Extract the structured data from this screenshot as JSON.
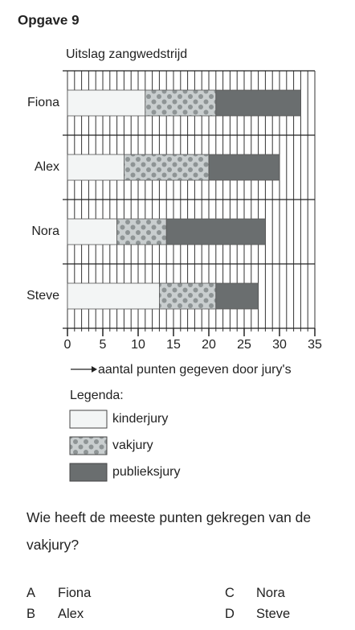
{
  "heading": "Opgave 9",
  "chart_data": {
    "type": "stacked-barh",
    "title": "Uitslag zangwedstrijd",
    "categories": [
      "Fiona",
      "Alex",
      "Nora",
      "Steve"
    ],
    "series": [
      {
        "name": "kinderjury",
        "color": "#f3f5f5",
        "values": [
          11,
          8,
          7,
          13
        ]
      },
      {
        "name": "vakjury",
        "color": "#c9cecf",
        "pattern": "dots",
        "values": [
          10,
          12,
          7,
          8
        ]
      },
      {
        "name": "publieksjury",
        "color": "#6a6e6f",
        "values": [
          12,
          10,
          14,
          6
        ]
      }
    ],
    "xlabel": "aantal punten gegeven door jury's",
    "xlim": [
      0,
      35
    ],
    "xticks": [
      0,
      5,
      10,
      15,
      20,
      25,
      30,
      35
    ],
    "x_minor_ticks": [
      0,
      1,
      2,
      3,
      4,
      5,
      6,
      7,
      8,
      9,
      10,
      11,
      12,
      13,
      14,
      15,
      16,
      17,
      18,
      19,
      20,
      21,
      22,
      23,
      24,
      25,
      26,
      27,
      28,
      29,
      30,
      31,
      32,
      33,
      34,
      35
    ],
    "grid": true,
    "legend_title": "Legenda:"
  },
  "question": {
    "text": "Wie heeft de meeste punten gekregen van de vakjury?",
    "options": [
      {
        "letter": "A",
        "text": "Fiona"
      },
      {
        "letter": "B",
        "text": "Alex"
      },
      {
        "letter": "C",
        "text": "Nora"
      },
      {
        "letter": "D",
        "text": "Steve"
      }
    ]
  }
}
